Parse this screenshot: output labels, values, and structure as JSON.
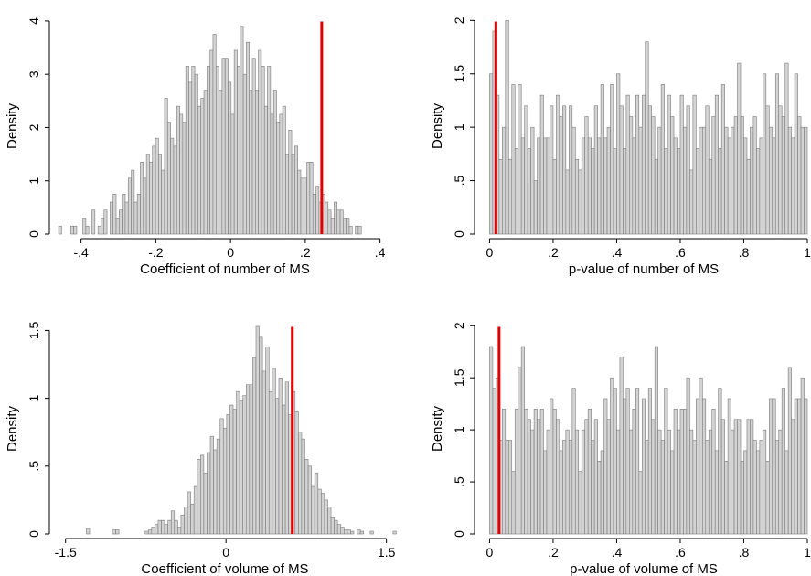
{
  "chart_data": [
    {
      "type": "histogram",
      "xlabel": "Coefficient of number of MS",
      "ylabel": "Density",
      "xlim": [
        -0.47,
        0.44
      ],
      "ylim": [
        0,
        4.05
      ],
      "xticks": [
        -0.4,
        -0.2,
        0,
        0.2,
        0.4
      ],
      "xtick_labels": [
        "-.4",
        "-.2",
        "0",
        ".2",
        ".4"
      ],
      "yticks": [
        0,
        1,
        2,
        3,
        4
      ],
      "ytick_labels": [
        "0",
        "1",
        "2",
        "3",
        "4"
      ],
      "bin_start": -0.46,
      "bin_width": 0.0081,
      "values": [
        0.15,
        0,
        0,
        0,
        0.15,
        0.15,
        0,
        0,
        0.3,
        0.15,
        0,
        0.45,
        0,
        0.15,
        0.3,
        0.45,
        0,
        0.6,
        0.75,
        0.3,
        0.45,
        0.75,
        0.6,
        1.05,
        1.2,
        0.6,
        0.75,
        1.35,
        1.05,
        1.5,
        1.35,
        1.65,
        1.8,
        1.5,
        1.2,
        2.55,
        2.1,
        1.8,
        1.65,
        2.4,
        2.25,
        2.1,
        3.15,
        2.85,
        3.15,
        3,
        2.4,
        2.55,
        2.7,
        3.15,
        3.45,
        3.75,
        3.15,
        2.7,
        3.3,
        3.3,
        2.85,
        2.25,
        3.45,
        3.15,
        3.9,
        3,
        3.6,
        2.7,
        3.3,
        2.7,
        3.45,
        3.15,
        2.4,
        3.15,
        2.25,
        2.7,
        2.1,
        2.25,
        2.4,
        1.5,
        1.95,
        1.5,
        1.65,
        1.2,
        1.05,
        1.05,
        1.35,
        1.35,
        0.75,
        0.9,
        0.6,
        0.75,
        0.6,
        0.45,
        0.3,
        0.6,
        0.45,
        0.45,
        0.3,
        0.3,
        0.15,
        0,
        0.15,
        0.15
      ],
      "reference_line": 0.244,
      "reference_color": "#e00000"
    },
    {
      "type": "histogram",
      "xlabel": "p-value of number of MS",
      "ylabel": "Density",
      "xlim": [
        -0.03,
        1.0
      ],
      "ylim": [
        0,
        2.02
      ],
      "xticks": [
        0,
        0.2,
        0.4,
        0.6,
        0.8,
        1
      ],
      "xtick_labels": [
        "0",
        ".2",
        ".4",
        ".6",
        ".8",
        "1"
      ],
      "yticks": [
        0,
        0.5,
        1,
        1.5,
        2
      ],
      "ytick_labels": [
        "0",
        ".5",
        "1",
        "1.5",
        "2"
      ],
      "bin_start": 0.0,
      "bin_width": 0.01,
      "values": [
        1.5,
        1.9,
        1.3,
        0.7,
        1.0,
        2.0,
        0.7,
        1.4,
        0.8,
        1.4,
        0.9,
        1.2,
        0.8,
        1.0,
        0.5,
        0.9,
        1.3,
        0.9,
        0.9,
        1.2,
        0.7,
        1.3,
        1.1,
        1.2,
        0.6,
        1.2,
        1.0,
        0.7,
        0.6,
        0.9,
        1.1,
        0.9,
        0.8,
        1.2,
        0.9,
        1.4,
        0.9,
        1.0,
        1.4,
        0.8,
        1.5,
        1.2,
        0.8,
        1.3,
        1.1,
        0.9,
        1.3,
        1.0,
        1.3,
        1.8,
        1.2,
        1.1,
        0.7,
        1.0,
        1.4,
        0.8,
        1.3,
        1.1,
        0.9,
        0.8,
        1.3,
        1.0,
        1.2,
        0.6,
        1.3,
        0.8,
        1.0,
        1.0,
        1.2,
        0.7,
        1.1,
        1.3,
        0.8,
        1.4,
        1.0,
        0.9,
        1.0,
        1.1,
        1.6,
        1.1,
        0.9,
        0.7,
        1.0,
        1.1,
        0.8,
        0.9,
        1.5,
        1.2,
        1.0,
        0.9,
        1.5,
        1.2,
        1.1,
        1.6,
        1.0,
        0.9,
        1.5,
        1.1,
        1.0,
        1.0
      ],
      "reference_line": 0.02,
      "reference_color": "#e00000"
    },
    {
      "type": "histogram",
      "xlabel": "Coefficient of volume of MS",
      "ylabel": "Density",
      "xlim": [
        -1.6,
        1.58
      ],
      "ylim": [
        0,
        1.55
      ],
      "xticks": [
        -1.5,
        0,
        1.5
      ],
      "xtick_labels": [
        "-1.5",
        "0",
        "1.5"
      ],
      "yticks": [
        0,
        0.5,
        1,
        1.5
      ],
      "ytick_labels": [
        "0",
        ".5",
        "1",
        "1.5"
      ],
      "bin_start": -1.58,
      "bin_width": 0.0305,
      "values": [
        0,
        0,
        0,
        0,
        0,
        0,
        0,
        0,
        0,
        0.04,
        0,
        0,
        0,
        0,
        0,
        0,
        0,
        0.03,
        0.03,
        0,
        0,
        0,
        0,
        0,
        0,
        0,
        0,
        0.02,
        0.03,
        0.05,
        0.07,
        0.1,
        0.1,
        0.07,
        0.1,
        0.17,
        0.1,
        0.05,
        0.14,
        0.2,
        0.31,
        0.22,
        0.35,
        0.55,
        0.58,
        0.45,
        0.6,
        0.72,
        0.62,
        0.7,
        0.85,
        0.78,
        0.88,
        0.95,
        0.92,
        1.05,
        0.98,
        1.02,
        1.1,
        1.1,
        1.3,
        1.53,
        1.45,
        1.2,
        1.38,
        1.05,
        1.22,
        1.0,
        1.15,
        0.95,
        1.12,
        0.88,
        1.05,
        0.9,
        0.75,
        0.7,
        0.55,
        0.5,
        0.35,
        0.45,
        0.33,
        0.3,
        0.25,
        0.2,
        0.12,
        0.1,
        0.07,
        0.05,
        0.03,
        0.03,
        0.02,
        0,
        0.03,
        0.02,
        0,
        0,
        0.02,
        0,
        0,
        0,
        0,
        0,
        0,
        0.02
      ],
      "reference_line": 0.62,
      "reference_color": "#e00000"
    },
    {
      "type": "histogram",
      "xlabel": "p-value of volume of MS",
      "ylabel": "Density",
      "xlim": [
        -0.03,
        1.0
      ],
      "ylim": [
        0,
        2.02
      ],
      "xticks": [
        0,
        0.2,
        0.4,
        0.6,
        0.8,
        1
      ],
      "xtick_labels": [
        "0",
        ".2",
        ".4",
        ".6",
        ".8",
        "1"
      ],
      "yticks": [
        0,
        0.5,
        1,
        1.5,
        2
      ],
      "ytick_labels": [
        "0",
        ".5",
        "1",
        "1.5",
        "2"
      ],
      "bin_start": 0.0,
      "bin_width": 0.01,
      "values": [
        1.8,
        1.4,
        1.5,
        0.9,
        1.2,
        0.9,
        0.9,
        0.6,
        1.2,
        1.6,
        1.8,
        1.2,
        1.1,
        1.0,
        1.2,
        1.1,
        1.2,
        0.8,
        1.0,
        1.3,
        1.2,
        1.1,
        0.8,
        0.9,
        1.0,
        0.9,
        1.4,
        1.0,
        0.6,
        1.0,
        1.1,
        1.2,
        0.9,
        1.1,
        0.7,
        0.8,
        1.3,
        1.1,
        1.5,
        1.4,
        1.0,
        1.7,
        1.3,
        1.4,
        1.0,
        1.2,
        1.4,
        0.6,
        1.3,
        0.9,
        1.4,
        1.1,
        1.8,
        1.0,
        0.9,
        1.4,
        1.0,
        0.8,
        1.2,
        1.0,
        1.2,
        1.2,
        1.5,
        1.0,
        0.9,
        1.3,
        1.5,
        1.3,
        0.9,
        1.0,
        1.2,
        0.8,
        1.4,
        1.1,
        0.7,
        1.3,
        1.0,
        1.1,
        1.1,
        0.7,
        0.8,
        1.1,
        1.1,
        0.9,
        0.8,
        0.9,
        1.0,
        0.7,
        1.3,
        1.3,
        0.9,
        1.0,
        1.4,
        0.8,
        1.6,
        1.1,
        1.3,
        1.3,
        1.5,
        1.3
      ],
      "reference_line": 0.03,
      "reference_color": "#e00000"
    }
  ]
}
